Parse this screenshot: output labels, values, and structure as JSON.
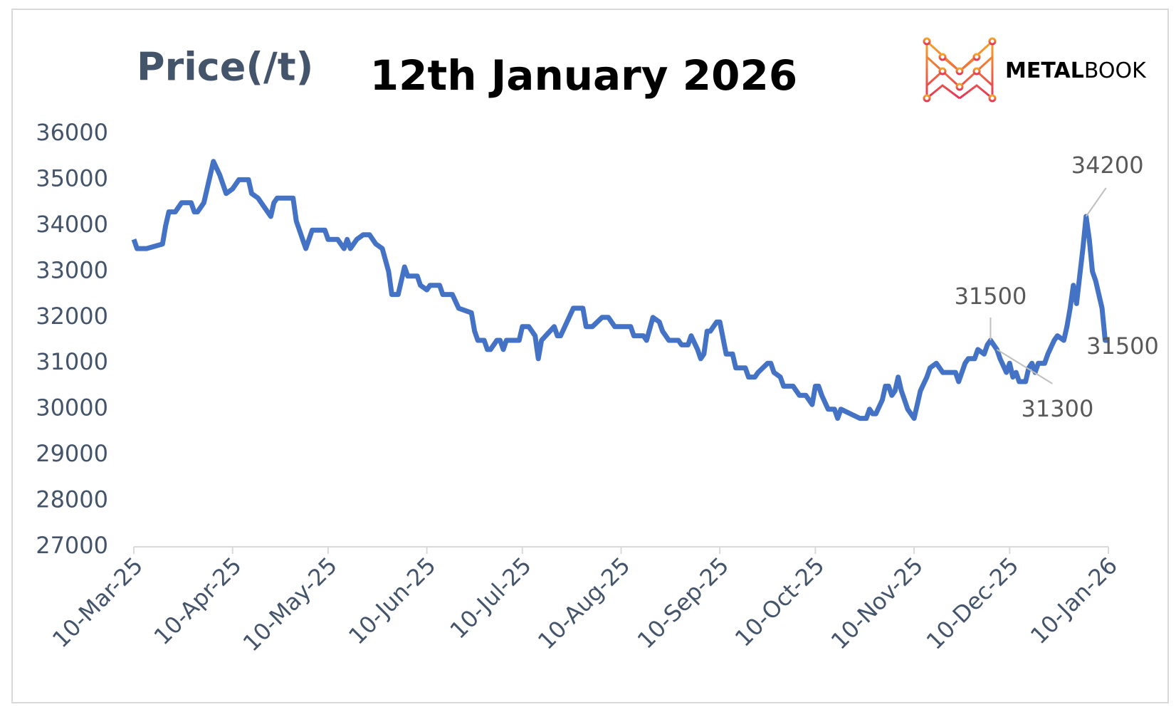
{
  "logo": {
    "bold": "METAL",
    "light": "BOOK"
  },
  "chart_data": {
    "type": "line",
    "title": "12th January 2026",
    "y_label": "Price(/t)",
    "xlim": [
      "2025-03-10",
      "2026-01-10"
    ],
    "xticks": [
      {
        "value": "2025-03-10",
        "label": "10-Mar-25"
      },
      {
        "value": "2025-04-10",
        "label": "10-Apr-25"
      },
      {
        "value": "2025-05-10",
        "label": "10-May-25"
      },
      {
        "value": "2025-06-10",
        "label": "10-Jun-25"
      },
      {
        "value": "2025-07-10",
        "label": "10-Jul-25"
      },
      {
        "value": "2025-08-10",
        "label": "10-Aug-25"
      },
      {
        "value": "2025-09-10",
        "label": "10-Sep-25"
      },
      {
        "value": "2025-10-10",
        "label": "10-Oct-25"
      },
      {
        "value": "2025-11-10",
        "label": "10-Nov-25"
      },
      {
        "value": "2025-12-10",
        "label": "10-Dec-25"
      },
      {
        "value": "2026-01-10",
        "label": "10-Jan-26"
      }
    ],
    "ylim": [
      27000,
      36000
    ],
    "yticks": [
      27000,
      28000,
      29000,
      30000,
      31000,
      32000,
      33000,
      34000,
      35000,
      36000
    ],
    "x": [
      "2025-03-10",
      "2025-03-11",
      "2025-03-14",
      "2025-03-19",
      "2025-03-20",
      "2025-03-21",
      "2025-03-23",
      "2025-03-25",
      "2025-03-28",
      "2025-03-29",
      "2025-03-30",
      "2025-04-01",
      "2025-04-04",
      "2025-04-06",
      "2025-04-08",
      "2025-04-10",
      "2025-04-12",
      "2025-04-15",
      "2025-04-16",
      "2025-04-18",
      "2025-04-20",
      "2025-04-22",
      "2025-04-23",
      "2025-04-24",
      "2025-04-29",
      "2025-04-30",
      "2025-05-02",
      "2025-05-03",
      "2025-05-05",
      "2025-05-09",
      "2025-05-10",
      "2025-05-13",
      "2025-05-15",
      "2025-05-16",
      "2025-05-17",
      "2025-05-19",
      "2025-05-21",
      "2025-05-23",
      "2025-05-25",
      "2025-05-27",
      "2025-05-29",
      "2025-05-30",
      "2025-06-01",
      "2025-06-03",
      "2025-06-04",
      "2025-06-07",
      "2025-06-08",
      "2025-06-10",
      "2025-06-11",
      "2025-06-14",
      "2025-06-15",
      "2025-06-18",
      "2025-06-20",
      "2025-06-24",
      "2025-06-25",
      "2025-06-26",
      "2025-06-28",
      "2025-06-29",
      "2025-06-30",
      "2025-07-02",
      "2025-07-03",
      "2025-07-04",
      "2025-07-05",
      "2025-07-09",
      "2025-07-10",
      "2025-07-12",
      "2025-07-14",
      "2025-07-15",
      "2025-07-16",
      "2025-07-20",
      "2025-07-21",
      "2025-07-22",
      "2025-07-26",
      "2025-07-29",
      "2025-07-30",
      "2025-08-01",
      "2025-08-04",
      "2025-08-06",
      "2025-08-08",
      "2025-08-13",
      "2025-08-14",
      "2025-08-17",
      "2025-08-18",
      "2025-08-20",
      "2025-08-22",
      "2025-08-23",
      "2025-08-25",
      "2025-08-28",
      "2025-08-29",
      "2025-08-31",
      "2025-09-01",
      "2025-09-03",
      "2025-09-04",
      "2025-09-05",
      "2025-09-06",
      "2025-09-07",
      "2025-09-09",
      "2025-09-10",
      "2025-09-12",
      "2025-09-14",
      "2025-09-15",
      "2025-09-18",
      "2025-09-19",
      "2025-09-21",
      "2025-09-22",
      "2025-09-25",
      "2025-09-26",
      "2025-09-27",
      "2025-09-29",
      "2025-09-30",
      "2025-10-03",
      "2025-10-05",
      "2025-10-07",
      "2025-10-09",
      "2025-10-10",
      "2025-10-11",
      "2025-10-12",
      "2025-10-14",
      "2025-10-16",
      "2025-10-17",
      "2025-10-18",
      "2025-10-24",
      "2025-10-26",
      "2025-10-27",
      "2025-10-28",
      "2025-10-29",
      "2025-10-31",
      "2025-11-01",
      "2025-11-02",
      "2025-11-03",
      "2025-11-04",
      "2025-11-05",
      "2025-11-06",
      "2025-11-07",
      "2025-11-08",
      "2025-11-10",
      "2025-11-12",
      "2025-11-14",
      "2025-11-15",
      "2025-11-17",
      "2025-11-19",
      "2025-11-23",
      "2025-11-24",
      "2025-11-26",
      "2025-11-27",
      "2025-11-29",
      "2025-11-30",
      "2025-12-02",
      "2025-12-03",
      "2025-12-04",
      "2025-12-06",
      "2025-12-07",
      "2025-12-09",
      "2025-12-10",
      "2025-12-11",
      "2025-12-12",
      "2025-12-13",
      "2025-12-15",
      "2025-12-16",
      "2025-12-17",
      "2025-12-18",
      "2025-12-19",
      "2025-12-21",
      "2025-12-22",
      "2025-12-24",
      "2025-12-25",
      "2025-12-27",
      "2025-12-28",
      "2025-12-29",
      "2025-12-30",
      "2025-12-31",
      "2026-01-01",
      "2026-01-02",
      "2026-01-03",
      "2026-01-04",
      "2026-01-05",
      "2026-01-06",
      "2026-01-07",
      "2026-01-08",
      "2026-01-09",
      "2026-01-10"
    ],
    "series": [
      {
        "color": "#4472c4",
        "values": [
          33700,
          33500,
          33500,
          33600,
          34000,
          34300,
          34300,
          34500,
          34500,
          34300,
          34300,
          34500,
          35400,
          35100,
          34700,
          34800,
          35000,
          35000,
          34700,
          34600,
          34400,
          34200,
          34500,
          34600,
          34600,
          34100,
          33700,
          33500,
          33900,
          33900,
          33700,
          33700,
          33500,
          33700,
          33500,
          33700,
          33800,
          33800,
          33600,
          33500,
          33000,
          32500,
          32500,
          33100,
          32900,
          32900,
          32700,
          32600,
          32700,
          32700,
          32500,
          32500,
          32200,
          32100,
          31700,
          31500,
          31500,
          31300,
          31300,
          31500,
          31500,
          31300,
          31500,
          31500,
          31800,
          31800,
          31600,
          31100,
          31500,
          31800,
          31600,
          31600,
          32200,
          32200,
          31800,
          31800,
          32000,
          32000,
          31800,
          31800,
          31600,
          31600,
          31500,
          32000,
          31900,
          31700,
          31500,
          31500,
          31400,
          31400,
          31600,
          31300,
          31100,
          31200,
          31700,
          31700,
          31900,
          31900,
          31200,
          31200,
          30900,
          30900,
          30700,
          30700,
          30800,
          31000,
          31000,
          30800,
          30700,
          30500,
          30500,
          30300,
          30300,
          30100,
          30500,
          30500,
          30300,
          30000,
          30000,
          29800,
          30000,
          29800,
          29800,
          30000,
          29900,
          29900,
          30200,
          30500,
          30500,
          30300,
          30400,
          30700,
          30400,
          30200,
          30000,
          29800,
          30400,
          30700,
          30900,
          31000,
          30800,
          30800,
          30600,
          31000,
          31100,
          31100,
          31300,
          31200,
          31400,
          31500,
          31300,
          31100,
          30800,
          31000,
          30700,
          30800,
          30600,
          30600,
          30900,
          31000,
          30800,
          31000,
          31000,
          31200,
          31500,
          31600,
          31500,
          31800,
          32200,
          32700,
          32300,
          32900,
          33500,
          34200,
          33700,
          33000,
          32800,
          32500,
          32200,
          31500,
          31500
        ]
      }
    ],
    "annotations": [
      {
        "x": "2025-12-04",
        "y": 31500
      },
      {
        "x": "2025-12-06",
        "y": 31300
      },
      {
        "x": "2026-01-03",
        "y": 34200
      },
      {
        "x": "2026-01-10",
        "y": 31500
      }
    ]
  }
}
